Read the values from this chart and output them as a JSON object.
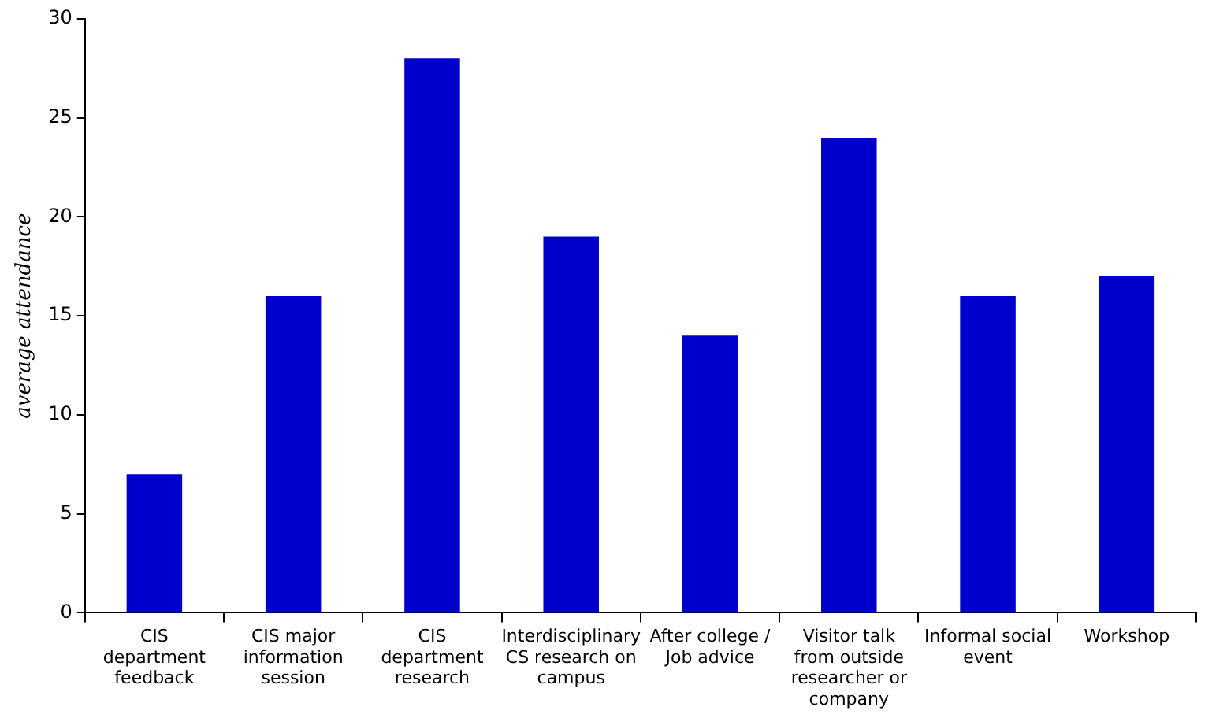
{
  "chart_data": {
    "type": "bar",
    "ylabel": "average attendance",
    "categories": [
      "CIS department feedback",
      "CIS major information session",
      "CIS department research",
      "Interdisciplinary CS research on campus",
      "After college / Job advice",
      "Visitor talk from outside researcher or company",
      "Informal social event",
      "Workshop"
    ],
    "values": [
      7,
      16,
      28,
      19,
      14,
      24,
      16,
      17
    ],
    "color": "#0000cc",
    "ylim": [
      0,
      30
    ],
    "yticks": [
      0,
      5,
      10,
      15,
      20,
      25,
      30
    ]
  }
}
